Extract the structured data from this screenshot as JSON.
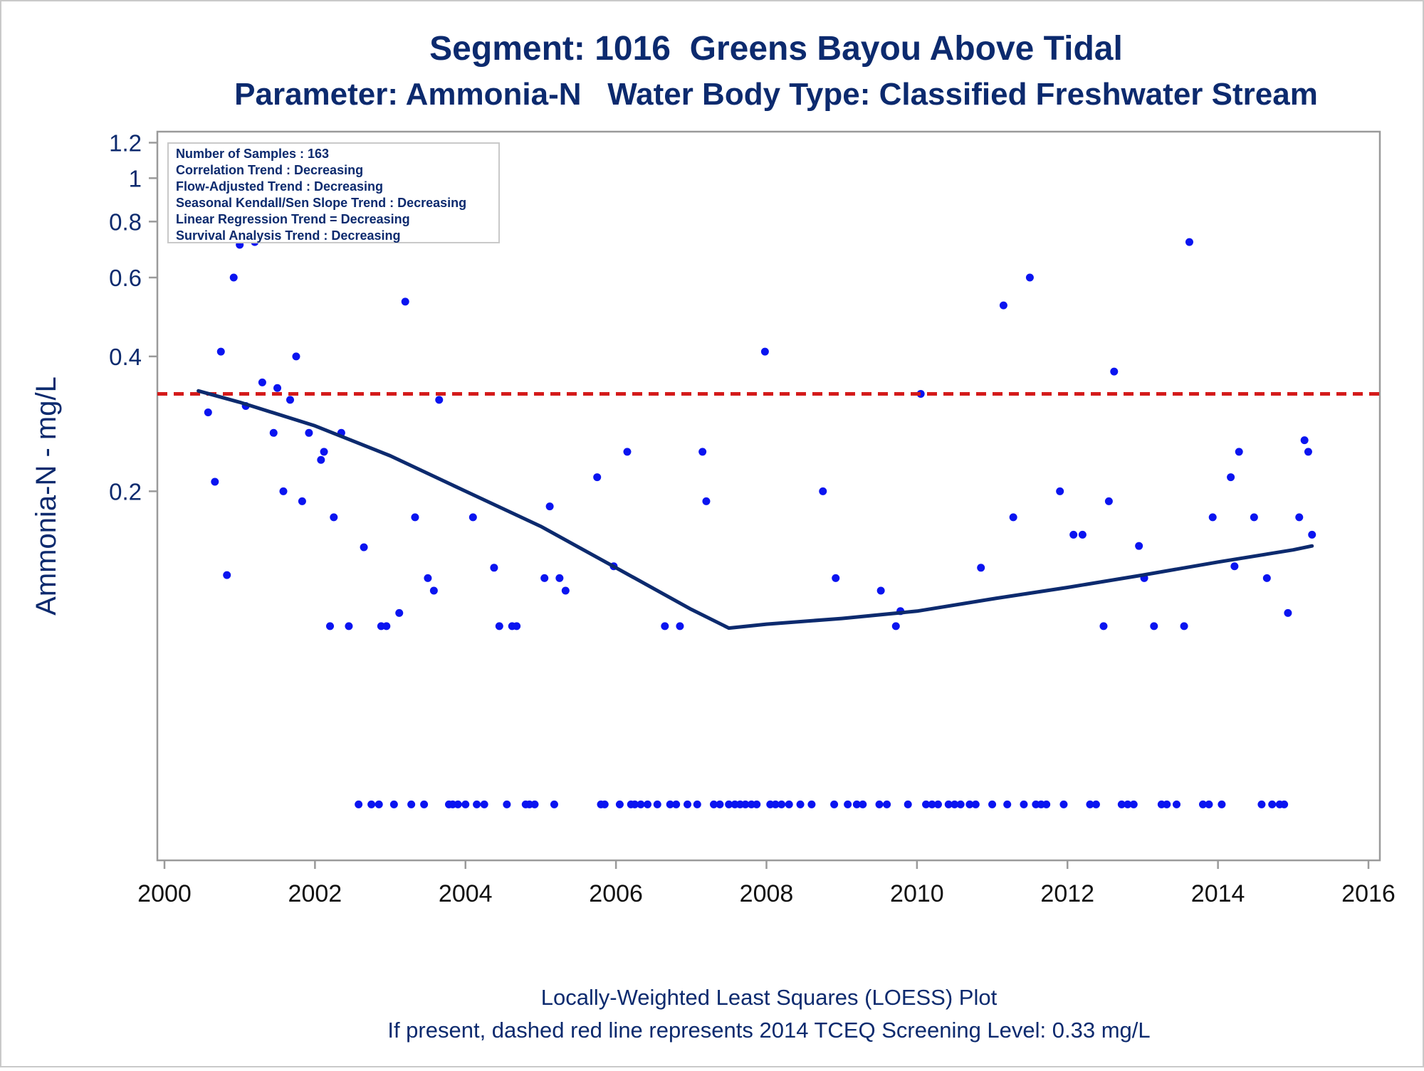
{
  "chart_data": {
    "type": "scatter",
    "title": "Segment: 1016  Greens Bayou Above Tidal",
    "subtitle": "Parameter: Ammonia-N   Water Body Type: Classified Freshwater Stream",
    "xlabel": "",
    "ylabel": "Ammonia-N - mg/L",
    "y_scale": "log",
    "xlim": [
      2000,
      2016
    ],
    "ylim": [
      0.03,
      1.27
    ],
    "x_ticks": [
      "2000",
      "2002",
      "2004",
      "2006",
      "2008",
      "2010",
      "2012",
      "2014",
      "2016"
    ],
    "y_ticks": [
      "0.2",
      "0.4",
      "0.6",
      "0.8",
      "1",
      "1.2"
    ],
    "grid": false,
    "legend_box": {
      "placement": "top-left",
      "lines": [
        "Number of Samples : 163",
        "Correlation Trend : Decreasing",
        "Flow-Adjusted Trend : Decreasing",
        "Seasonal Kendall/Sen Slope Trend : Decreasing",
        "Linear Regression Trend = Decreasing",
        "Survival Analysis Trend : Decreasing"
      ]
    },
    "footnotes": [
      "Locally-Weighted Least Squares (LOESS) Plot",
      "If present, dashed red line represents 2014 TCEQ Screening Level: 0.33 mg/L"
    ],
    "screening_level": 0.33,
    "colors": {
      "points": "#0a14f0",
      "loess": "#0c2a6e",
      "screening": "#d41a1a",
      "text": "#0c2a6e",
      "frame": "#9a9a9a"
    },
    "loess_line": [
      [
        2000.45,
        0.335
      ],
      [
        2001.0,
        0.316
      ],
      [
        2002.0,
        0.28
      ],
      [
        2003.0,
        0.24
      ],
      [
        2004.0,
        0.2
      ],
      [
        2005.0,
        0.167
      ],
      [
        2006.0,
        0.135
      ],
      [
        2007.0,
        0.109
      ],
      [
        2007.5,
        0.099
      ],
      [
        2008.0,
        0.101
      ],
      [
        2009.0,
        0.104
      ],
      [
        2010.0,
        0.108
      ],
      [
        2011.0,
        0.115
      ],
      [
        2012.0,
        0.122
      ],
      [
        2013.0,
        0.13
      ],
      [
        2014.0,
        0.139
      ],
      [
        2015.0,
        0.148
      ],
      [
        2015.25,
        0.151
      ]
    ],
    "points": [
      [
        2000.42,
        0.98
      ],
      [
        2000.5,
        1.13
      ],
      [
        2000.58,
        0.3
      ],
      [
        2000.67,
        0.21
      ],
      [
        2000.75,
        0.41
      ],
      [
        2000.83,
        0.13
      ],
      [
        2000.92,
        0.6
      ],
      [
        2001.0,
        0.71
      ],
      [
        2001.08,
        0.31
      ],
      [
        2001.2,
        0.72
      ],
      [
        2001.22,
        0.87
      ],
      [
        2001.3,
        0.35
      ],
      [
        2001.45,
        0.27
      ],
      [
        2001.5,
        0.34
      ],
      [
        2001.58,
        0.2
      ],
      [
        2001.67,
        0.32
      ],
      [
        2001.75,
        0.4
      ],
      [
        2001.83,
        0.19
      ],
      [
        2001.92,
        0.27
      ],
      [
        2002.08,
        0.235
      ],
      [
        2002.12,
        0.245
      ],
      [
        2002.2,
        0.1
      ],
      [
        2002.25,
        0.175
      ],
      [
        2002.35,
        0.27
      ],
      [
        2002.45,
        0.1
      ],
      [
        2002.58,
        0.04
      ],
      [
        2002.65,
        0.15
      ],
      [
        2002.75,
        0.04
      ],
      [
        2002.85,
        0.04
      ],
      [
        2002.88,
        0.1
      ],
      [
        2002.95,
        0.1
      ],
      [
        2003.05,
        0.04
      ],
      [
        2003.12,
        0.107
      ],
      [
        2003.2,
        0.53
      ],
      [
        2003.28,
        0.04
      ],
      [
        2003.33,
        0.175
      ],
      [
        2003.45,
        0.04
      ],
      [
        2003.5,
        0.128
      ],
      [
        2003.58,
        0.12
      ],
      [
        2003.65,
        0.32
      ],
      [
        2003.78,
        0.04
      ],
      [
        2003.83,
        0.04
      ],
      [
        2003.9,
        0.04
      ],
      [
        2004.0,
        0.04
      ],
      [
        2004.1,
        0.175
      ],
      [
        2004.15,
        0.04
      ],
      [
        2004.25,
        0.04
      ],
      [
        2004.38,
        0.135
      ],
      [
        2004.45,
        0.1
      ],
      [
        2004.55,
        0.04
      ],
      [
        2004.62,
        0.1
      ],
      [
        2004.68,
        0.1
      ],
      [
        2004.8,
        0.04
      ],
      [
        2004.85,
        0.04
      ],
      [
        2004.92,
        0.04
      ],
      [
        2005.05,
        0.128
      ],
      [
        2005.12,
        0.185
      ],
      [
        2005.18,
        0.04
      ],
      [
        2005.25,
        0.128
      ],
      [
        2005.33,
        0.12
      ],
      [
        2005.75,
        0.215
      ],
      [
        2005.8,
        0.04
      ],
      [
        2005.85,
        0.04
      ],
      [
        2005.97,
        0.136
      ],
      [
        2006.05,
        0.04
      ],
      [
        2006.15,
        0.245
      ],
      [
        2006.2,
        0.04
      ],
      [
        2006.25,
        0.04
      ],
      [
        2006.33,
        0.04
      ],
      [
        2006.42,
        0.04
      ],
      [
        2006.55,
        0.04
      ],
      [
        2006.65,
        0.1
      ],
      [
        2006.72,
        0.04
      ],
      [
        2006.8,
        0.04
      ],
      [
        2006.85,
        0.1
      ],
      [
        2006.95,
        0.04
      ],
      [
        2007.08,
        0.04
      ],
      [
        2007.15,
        0.245
      ],
      [
        2007.2,
        0.19
      ],
      [
        2007.3,
        0.04
      ],
      [
        2007.38,
        0.04
      ],
      [
        2007.5,
        0.04
      ],
      [
        2007.58,
        0.04
      ],
      [
        2007.65,
        0.04
      ],
      [
        2007.72,
        0.04
      ],
      [
        2007.8,
        0.04
      ],
      [
        2007.87,
        0.04
      ],
      [
        2007.98,
        0.41
      ],
      [
        2008.05,
        0.04
      ],
      [
        2008.12,
        0.04
      ],
      [
        2008.2,
        0.04
      ],
      [
        2008.3,
        0.04
      ],
      [
        2008.45,
        0.04
      ],
      [
        2008.6,
        0.04
      ],
      [
        2008.75,
        0.2
      ],
      [
        2008.9,
        0.04
      ],
      [
        2008.92,
        0.128
      ],
      [
        2009.08,
        0.04
      ],
      [
        2009.2,
        0.04
      ],
      [
        2009.28,
        0.04
      ],
      [
        2009.5,
        0.04
      ],
      [
        2009.52,
        0.12
      ],
      [
        2009.6,
        0.04
      ],
      [
        2009.72,
        0.1
      ],
      [
        2009.78,
        0.108
      ],
      [
        2009.88,
        0.04
      ],
      [
        2010.05,
        0.33
      ],
      [
        2010.12,
        0.04
      ],
      [
        2010.2,
        0.04
      ],
      [
        2010.28,
        0.04
      ],
      [
        2010.42,
        0.04
      ],
      [
        2010.5,
        0.04
      ],
      [
        2010.58,
        0.04
      ],
      [
        2010.7,
        0.04
      ],
      [
        2010.78,
        0.04
      ],
      [
        2010.85,
        0.135
      ],
      [
        2011.0,
        0.04
      ],
      [
        2011.15,
        0.52
      ],
      [
        2011.2,
        0.04
      ],
      [
        2011.28,
        0.175
      ],
      [
        2011.42,
        0.04
      ],
      [
        2011.5,
        0.6
      ],
      [
        2011.58,
        0.04
      ],
      [
        2011.65,
        0.04
      ],
      [
        2011.72,
        0.04
      ],
      [
        2011.9,
        0.2
      ],
      [
        2011.95,
        0.04
      ],
      [
        2012.08,
        0.16
      ],
      [
        2012.2,
        0.16
      ],
      [
        2012.3,
        0.04
      ],
      [
        2012.38,
        0.04
      ],
      [
        2012.48,
        0.1
      ],
      [
        2012.55,
        0.19
      ],
      [
        2012.62,
        0.37
      ],
      [
        2012.72,
        0.04
      ],
      [
        2012.8,
        0.04
      ],
      [
        2012.88,
        0.04
      ],
      [
        2012.95,
        0.151
      ],
      [
        2013.02,
        0.128
      ],
      [
        2013.15,
        0.1
      ],
      [
        2013.25,
        0.04
      ],
      [
        2013.32,
        0.04
      ],
      [
        2013.45,
        0.04
      ],
      [
        2013.55,
        0.1
      ],
      [
        2013.62,
        0.72
      ],
      [
        2013.8,
        0.04
      ],
      [
        2013.88,
        0.04
      ],
      [
        2013.93,
        0.175
      ],
      [
        2014.05,
        0.04
      ],
      [
        2014.17,
        0.215
      ],
      [
        2014.22,
        0.136
      ],
      [
        2014.28,
        0.245
      ],
      [
        2014.48,
        0.175
      ],
      [
        2014.58,
        0.04
      ],
      [
        2014.65,
        0.128
      ],
      [
        2014.72,
        0.04
      ],
      [
        2014.82,
        0.04
      ],
      [
        2014.88,
        0.04
      ],
      [
        2014.93,
        0.107
      ],
      [
        2015.08,
        0.175
      ],
      [
        2015.15,
        0.26
      ],
      [
        2015.2,
        0.245
      ],
      [
        2015.25,
        0.16
      ]
    ]
  }
}
